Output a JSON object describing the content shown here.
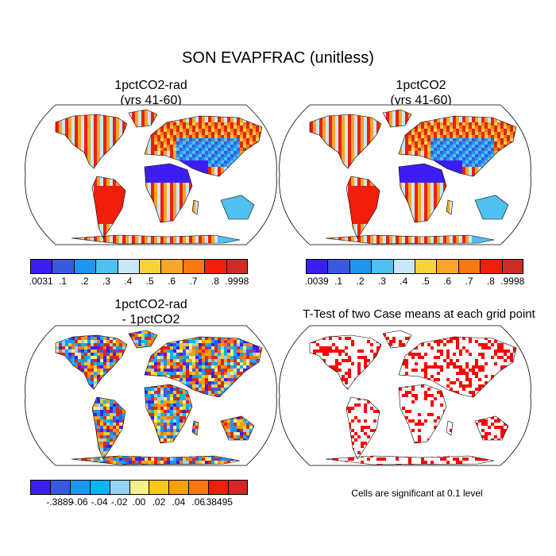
{
  "title": "SON EVAPFRAC (unitless)",
  "panels": [
    {
      "id": "p1",
      "title_line1": "1pctCO2-rad",
      "title_line2": "(yrs 41-60)",
      "style": "field"
    },
    {
      "id": "p2",
      "title_line1": "1pctCO2",
      "title_line2": "(yrs 41-60)",
      "style": "field"
    },
    {
      "id": "p3",
      "title_line1": "1pctCO2-rad",
      "title_line2": "- 1pctCO2",
      "style": "diff"
    },
    {
      "id": "p4",
      "title_line1": "T-Test of two Case means at each grid point",
      "title_line2": "",
      "style": "ttest"
    }
  ],
  "colorbars": {
    "cb1": {
      "colors": [
        "#3c1ef2",
        "#3a5ade",
        "#1e96f0",
        "#50c0f0",
        "#c8e6f8",
        "#f8d23c",
        "#f8a628",
        "#f87814",
        "#f01e0a",
        "#cd2a28"
      ],
      "labels": [
        ".0031",
        ".1",
        ".2",
        ".3",
        ".4",
        ".5",
        ".6",
        ".7",
        ".8",
        ".9998"
      ]
    },
    "cb2": {
      "colors": [
        "#3c1ef2",
        "#3a5ade",
        "#1e96f0",
        "#50c0f0",
        "#c8e6f8",
        "#f8d23c",
        "#f8a628",
        "#f87814",
        "#f01e0a",
        "#cd2a28"
      ],
      "labels": [
        ".0039",
        ".1",
        ".2",
        ".3",
        ".4",
        ".5",
        ".6",
        ".7",
        ".8",
        ".9998"
      ]
    },
    "cb3": {
      "colors": [
        "#3c1ef2",
        "#3a5ade",
        "#1e96f0",
        "#0ab4f0",
        "#96d2f0",
        "#f8f08c",
        "#f8c81e",
        "#f8a00a",
        "#f87814",
        "#f01e0a",
        "#cd2a28"
      ],
      "labels": [
        "-.3889",
        "-.06",
        "-.04",
        "-.02",
        ".00",
        ".02",
        ".04",
        ".06",
        ".38495"
      ]
    }
  },
  "note": "Cells are significant at 0.1 level",
  "legend_colors": {
    "land_blue": "#3a5ade",
    "sig_red": "#ff0000"
  }
}
